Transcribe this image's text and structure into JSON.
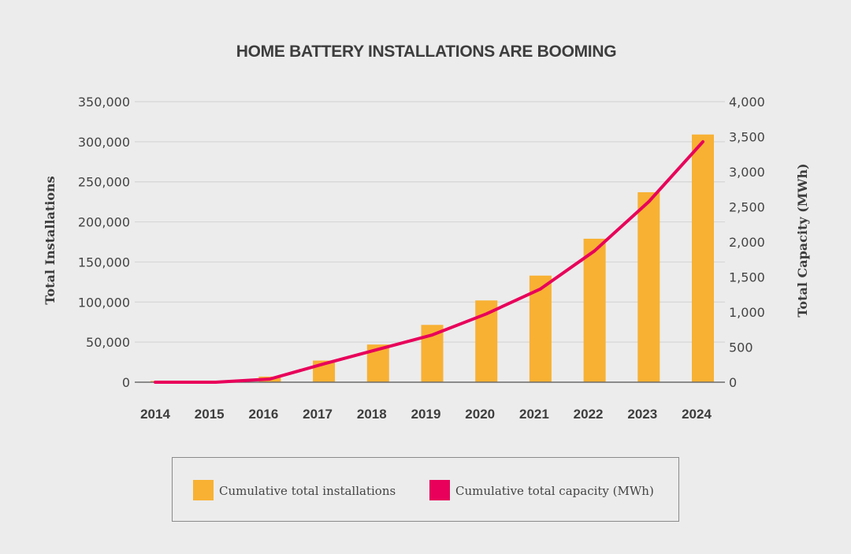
{
  "chart_data": {
    "type": "bar+line",
    "title": "HOME BATTERY INSTALLATIONS ARE BOOMING",
    "categories": [
      "2014",
      "2015",
      "2016",
      "2017",
      "2018",
      "2019",
      "2020",
      "2021",
      "2022",
      "2023",
      "2024"
    ],
    "series": [
      {
        "name": "Cumulative total installations",
        "type": "bar",
        "axis": "left",
        "color": "#f8b133",
        "values": [
          1500,
          500,
          7000,
          27000,
          47000,
          71500,
          102000,
          133000,
          179000,
          237000,
          309000
        ]
      },
      {
        "name": "Cumulative total capacity (MWh)",
        "type": "line",
        "axis": "right",
        "color": "#e8005a",
        "values": [
          0,
          0,
          45,
          262,
          468,
          674,
          974,
          1330,
          1873,
          2573,
          3428
        ]
      }
    ],
    "ylabel": "Total Installations",
    "ylabel_right": "Total Capacity (MWh)",
    "ylim": [
      0,
      350000
    ],
    "ylim_right": [
      0,
      4000
    ],
    "yticks": [
      "0",
      "50,000",
      "100,000",
      "150,000",
      "200,000",
      "250,000",
      "300,000",
      "350,000"
    ],
    "yticks_right": [
      "0",
      "500",
      "1,000",
      "1,500",
      "2,000",
      "2,500",
      "3,000",
      "3,500",
      "4,000"
    ],
    "grid": true,
    "legend_position": "bottom"
  }
}
